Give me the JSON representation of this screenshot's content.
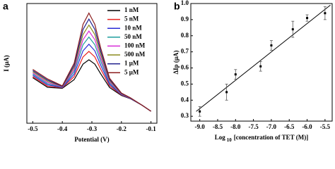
{
  "chart_data": [
    {
      "type": "line",
      "panel": "a",
      "x_label": "Potential (V)",
      "y_label": "I (μA)",
      "x": [
        -0.5,
        -0.45,
        -0.4,
        -0.36,
        -0.33,
        -0.31,
        -0.29,
        -0.27,
        -0.24,
        -0.2,
        -0.17,
        -0.13,
        -0.1
      ],
      "xlim": [
        -0.52,
        -0.08
      ],
      "ylim": [
        0,
        10
      ],
      "xticks": [
        -0.5,
        -0.4,
        -0.3,
        -0.2,
        -0.1
      ],
      "legend": "upper right",
      "series": [
        {
          "name": "1 nM",
          "color": "#000000",
          "values": [
            3.8,
            3.0,
            2.92,
            3.64,
            4.94,
            5.3,
            4.94,
            4.12,
            2.98,
            2.32,
            2.05,
            1.5,
            1.0
          ]
        },
        {
          "name": "5 nM",
          "color": "#e8231f",
          "values": [
            3.9,
            3.1,
            2.96,
            3.89,
            5.54,
            6.0,
            5.54,
            4.51,
            3.12,
            2.36,
            2.06,
            1.5,
            1.0
          ]
        },
        {
          "name": "10 nM",
          "color": "#2b2bd6",
          "values": [
            4.0,
            3.2,
            2.99,
            4.1,
            6.05,
            6.6,
            6.05,
            4.84,
            3.24,
            2.39,
            2.07,
            1.5,
            1.0
          ]
        },
        {
          "name": "50 nM",
          "color": "#1e9e9e",
          "values": [
            4.1,
            3.3,
            3.02,
            4.31,
            6.56,
            7.2,
            6.56,
            5.17,
            3.36,
            2.42,
            2.09,
            1.5,
            1.0
          ]
        },
        {
          "name": "100 nM",
          "color": "#d62bd6",
          "values": [
            4.2,
            3.4,
            3.04,
            4.48,
            6.98,
            7.7,
            6.98,
            5.44,
            3.46,
            2.44,
            2.1,
            1.5,
            1.0
          ]
        },
        {
          "name": "500 nM",
          "color": "#8c8c1e",
          "values": [
            4.3,
            3.5,
            3.07,
            4.66,
            7.41,
            8.2,
            7.41,
            5.72,
            3.56,
            2.47,
            2.11,
            1.5,
            1.0
          ]
        },
        {
          "name": "1 μM",
          "color": "#1e1e8c",
          "values": [
            4.4,
            3.6,
            3.09,
            4.83,
            7.83,
            8.7,
            7.83,
            5.99,
            3.66,
            2.49,
            2.12,
            1.5,
            1.0
          ]
        },
        {
          "name": "5 μM",
          "color": "#8c1e1e",
          "values": [
            4.5,
            3.7,
            3.12,
            5.01,
            8.26,
            9.2,
            8.26,
            6.27,
            3.76,
            2.52,
            2.13,
            1.5,
            1.0
          ]
        }
      ]
    },
    {
      "type": "scatter",
      "panel": "b",
      "x_label": [
        "Log",
        "10",
        "[concentration of TET (M)]"
      ],
      "y_label": "ΔIp (μA)",
      "x": [
        -9.0,
        -8.25,
        -8.0,
        -7.3,
        -7.0,
        -6.4,
        -6.0,
        -5.5
      ],
      "values": [
        0.33,
        0.45,
        0.56,
        0.61,
        0.74,
        0.84,
        0.91,
        0.94
      ],
      "errors": [
        0.03,
        0.05,
        0.03,
        0.03,
        0.03,
        0.05,
        0.02,
        0.04
      ],
      "color": "#000000",
      "fit": {
        "x": [
          -9.1,
          -5.35
        ],
        "values": [
          0.33,
          0.99
        ]
      },
      "xlim": [
        -9.25,
        -5.3
      ],
      "ylim": [
        0.27,
        1.0
      ],
      "xticks": [
        {
          "value": -9,
          "label": "-9.0"
        },
        -8.5,
        {
          "value": -8,
          "label": "-8.0"
        },
        -7.5,
        {
          "value": -7,
          "label": "-7.0"
        },
        -6.5,
        {
          "value": -6,
          "label": "-6.0"
        },
        -5.5
      ],
      "yticks": [
        0.3,
        0.4,
        0.5,
        0.6,
        0.7,
        0.8,
        0.9,
        {
          "value": 1,
          "label": "1.0"
        }
      ]
    }
  ]
}
